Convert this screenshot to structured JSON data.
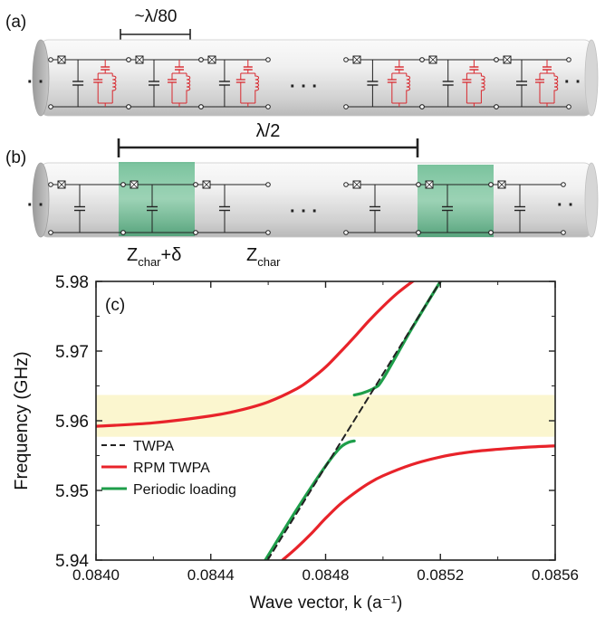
{
  "panel_a": {
    "label": "(a)",
    "scale_label": "~λ/80",
    "ellipsis_left": "· ·",
    "ellipsis_mid": "·  ·  ·",
    "ellipsis_right": "· ·"
  },
  "panel_b": {
    "label": "(b)",
    "span_label": "λ/2",
    "ellipsis_left": "· ·",
    "ellipsis_mid": "·  ·  ·",
    "ellipsis_right": "· ·",
    "z_loaded": {
      "main": "Z",
      "sub": "char",
      "suffix": "+δ"
    },
    "z_char": {
      "main": "Z",
      "sub": "char"
    }
  },
  "colors": {
    "tube_light": "#f4f4f4",
    "tube_dark": "#bdbdbd",
    "circuit": "#222222",
    "resonator": "#d8282e",
    "highlight": "#5cba88",
    "band": "#fbf6cf"
  },
  "chart_data": {
    "type": "line",
    "panel_label": "(c)",
    "xlabel": "Wave vector, k (a⁻¹)",
    "ylabel": "Frequency (GHz)",
    "xlim": [
      0.084,
      0.0856
    ],
    "ylim": [
      5.94,
      5.98
    ],
    "xticks": [
      "0.0840",
      "0.0844",
      "0.0848",
      "0.0852",
      "0.0856"
    ],
    "xtick_values": [
      0.084,
      0.0844,
      0.0848,
      0.0852,
      0.0856
    ],
    "yticks": [
      "5.94",
      "5.95",
      "5.96",
      "5.97",
      "5.98"
    ],
    "ytick_values": [
      5.94,
      5.95,
      5.96,
      5.97,
      5.98
    ],
    "band": [
      5.9577,
      5.9637
    ],
    "legend_position": "lower-left",
    "series": [
      {
        "name": "TWPA",
        "color": "#222222",
        "style": "dashed",
        "x": [
          0.084598,
          0.0852
        ],
        "y": [
          5.94,
          5.98
        ]
      },
      {
        "name": "RPM TWPA",
        "color": "#e8232a",
        "style": "solid",
        "branches": [
          {
            "x": [
              0.084,
              0.0842,
              0.0844,
              0.0845,
              0.0846,
              0.0847,
              0.08475,
              0.0848,
              0.08485,
              0.0849,
              0.08495,
              0.085,
              0.08505,
              0.0851,
              0.08512
            ],
            "y": [
              5.9592,
              5.9597,
              5.9607,
              5.9615,
              5.9627,
              5.9646,
              5.966,
              5.9677,
              5.9698,
              5.972,
              5.9743,
              5.9764,
              5.9783,
              5.9799,
              5.9804
            ]
          },
          {
            "x": [
              0.08465,
              0.0847,
              0.08475,
              0.0848,
              0.08485,
              0.0849,
              0.08495,
              0.085,
              0.0851,
              0.0852,
              0.0853,
              0.0854,
              0.0855,
              0.0856
            ],
            "y": [
              5.94,
              5.9418,
              5.9438,
              5.946,
              5.948,
              5.9496,
              5.951,
              5.9521,
              5.9537,
              5.9548,
              5.9555,
              5.9559,
              5.9562,
              5.9564
            ]
          }
        ]
      },
      {
        "name": "Periodic loading",
        "color": "#1e9e4a",
        "style": "solid",
        "branches": [
          {
            "x": [
              0.08459,
              0.0847,
              0.0848,
              0.08485,
              0.08488,
              0.0849
            ],
            "y": [
              5.94,
              5.9473,
              5.9535,
              5.9561,
              5.9569,
              5.9571
            ]
          },
          {
            "x": [
              0.0849,
              0.08493,
              0.08497,
              0.085,
              0.0851,
              0.0852
            ],
            "y": [
              5.9637,
              5.964,
              5.9647,
              5.966,
              5.9732,
              5.98
            ]
          }
        ]
      }
    ]
  }
}
